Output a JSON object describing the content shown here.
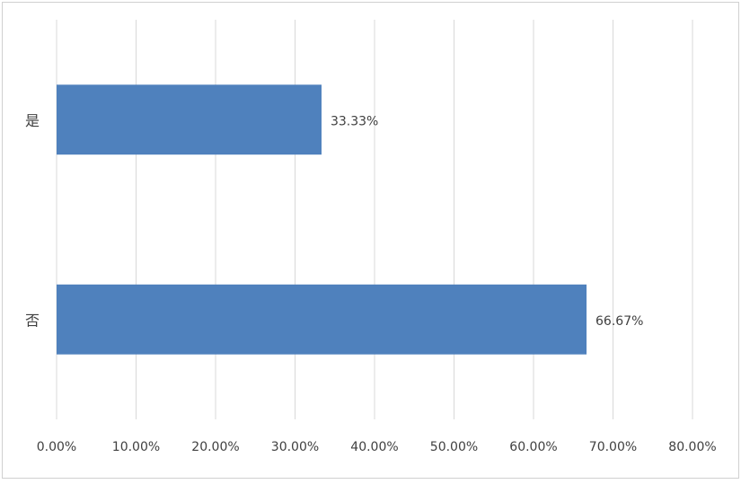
{
  "chart_data": {
    "type": "hbar",
    "categories": [
      "是",
      "否"
    ],
    "values": [
      33.33,
      66.67
    ],
    "value_labels": [
      "33.33%",
      "66.67%"
    ],
    "color": "#4f81bd",
    "xlim": [
      0,
      80
    ],
    "xticks": [
      {
        "value": 0,
        "label": "0.00%"
      },
      {
        "value": 10,
        "label": "10.00%"
      },
      {
        "value": 20,
        "label": "20.00%"
      },
      {
        "value": 30,
        "label": "30.00%"
      },
      {
        "value": 40,
        "label": "40.00%"
      },
      {
        "value": 50,
        "label": "50.00%"
      },
      {
        "value": 60,
        "label": "60.00%"
      },
      {
        "value": 70,
        "label": "70.00%"
      },
      {
        "value": 80,
        "label": "80.00%"
      }
    ],
    "grid": true
  }
}
